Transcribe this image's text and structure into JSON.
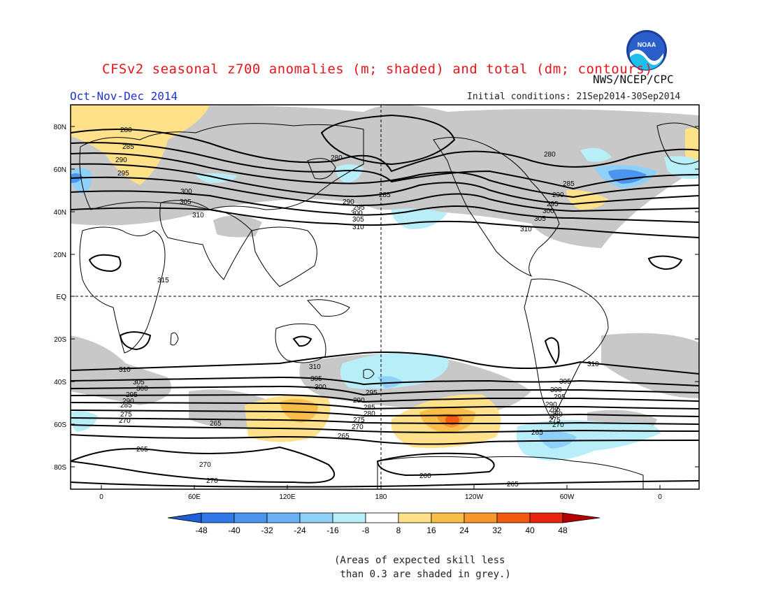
{
  "header": {
    "title": "CFSv2 seasonal z700 anomalies (m; shaded) and total (dm; contours)",
    "org": "NWS/NCEP/CPC",
    "season": "Oct-Nov-Dec 2014",
    "initial_conditions": "Initial conditions: 21Sep2014-30Sep2014",
    "logo_text": "NOAA"
  },
  "axes": {
    "lat_ticks": [
      "80N",
      "60N",
      "40N",
      "20N",
      "EQ",
      "20S",
      "40S",
      "60S",
      "80S"
    ],
    "lon_ticks": [
      "0",
      "60E",
      "120E",
      "180",
      "120W",
      "60W",
      "0"
    ]
  },
  "contour_labels": {
    "north": [
      "280",
      "285",
      "290",
      "295",
      "300",
      "305",
      "310",
      "280",
      "285",
      "290",
      "295",
      "300",
      "305",
      "310",
      "280",
      "285",
      "290",
      "295",
      "300",
      "305",
      "310",
      "315"
    ],
    "south": [
      "310",
      "305",
      "300",
      "295",
      "290",
      "285",
      "275",
      "270",
      "265",
      "310",
      "305",
      "300",
      "295",
      "290",
      "285",
      "280",
      "275",
      "270",
      "265",
      "310",
      "305",
      "300",
      "295",
      "290",
      "285",
      "280",
      "275",
      "270",
      "265",
      "265",
      "270",
      "270",
      "260",
      "265"
    ]
  },
  "colorbar": {
    "labels": [
      "-48",
      "-40",
      "-32",
      "-24",
      "-16",
      "-8",
      "8",
      "16",
      "24",
      "32",
      "40",
      "48"
    ],
    "colors": [
      "#1f5fd6",
      "#2f7ae8",
      "#4b95f0",
      "#6ab2f5",
      "#8fd0f8",
      "#b8eef8",
      "#ffffff",
      "#ffe18a",
      "#f9bd4a",
      "#f7962b",
      "#f25a12",
      "#e8240e",
      "#b50000"
    ]
  },
  "shading": {
    "low_skill_color": "#c8c8c8",
    "land_outline_color": "#000000",
    "contour_color": "#000000"
  },
  "note": "(Areas of expected skill less\n than 0.3 are shaded in grey.)"
}
